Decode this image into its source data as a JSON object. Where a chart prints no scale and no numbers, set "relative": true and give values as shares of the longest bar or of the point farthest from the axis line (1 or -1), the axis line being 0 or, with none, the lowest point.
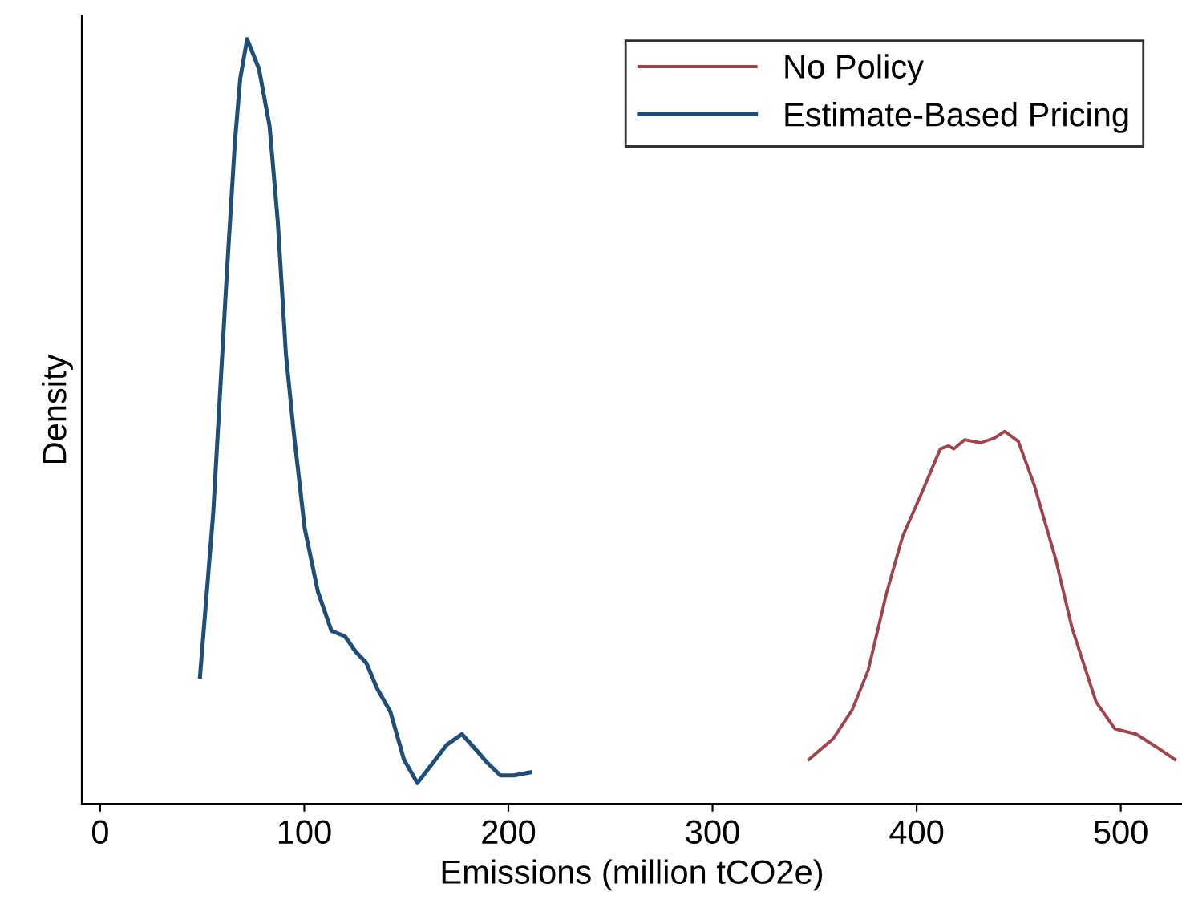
{
  "chart_data": {
    "type": "line",
    "relative": true,
    "xlabel": "Emissions (million tCO2e)",
    "ylabel": "Density",
    "xlim": [
      -9,
      530
    ],
    "xticks": [
      0,
      100,
      200,
      300,
      400,
      500
    ],
    "grid": false,
    "legend": "top right",
    "tick_labels": "x",
    "series": [
      {
        "name": "No Policy",
        "color": "#a0434b",
        "x": [
          347.3,
          359.1,
          368.3,
          376.2,
          385.4,
          393.2,
          402.4,
          411.6,
          415.6,
          418.2,
          423.5,
          431.3,
          437.9,
          443.2,
          449.8,
          457.7,
          468.2,
          476.1,
          487.9,
          497.1,
          507.6,
          518.1,
          526.5
        ],
        "values": [
          0.058,
          0.085,
          0.122,
          0.174,
          0.277,
          0.35,
          0.406,
          0.464,
          0.468,
          0.464,
          0.476,
          0.472,
          0.478,
          0.487,
          0.474,
          0.416,
          0.319,
          0.23,
          0.133,
          0.098,
          0.091,
          0.073,
          0.058
        ]
      },
      {
        "name": "Estimate-Based Pricing",
        "color": "#1f4e79",
        "x": [
          48.9,
          55.4,
          62,
          66,
          68.6,
          72,
          77.8,
          83,
          87,
          91,
          94.9,
          100.2,
          106.7,
          113.3,
          119.9,
          125.1,
          130.4,
          135.6,
          142.2,
          148.8,
          155.4,
          163.2,
          169.8,
          177.2,
          184.3,
          189.5,
          196.1,
          202.7,
          210.6
        ],
        "values": [
          0.166,
          0.381,
          0.691,
          0.865,
          0.948,
          1.0,
          0.961,
          0.886,
          0.762,
          0.588,
          0.484,
          0.36,
          0.277,
          0.226,
          0.219,
          0.199,
          0.184,
          0.151,
          0.12,
          0.058,
          0.027,
          0.054,
          0.077,
          0.091,
          0.07,
          0.054,
          0.037,
          0.037,
          0.041
        ]
      }
    ]
  }
}
